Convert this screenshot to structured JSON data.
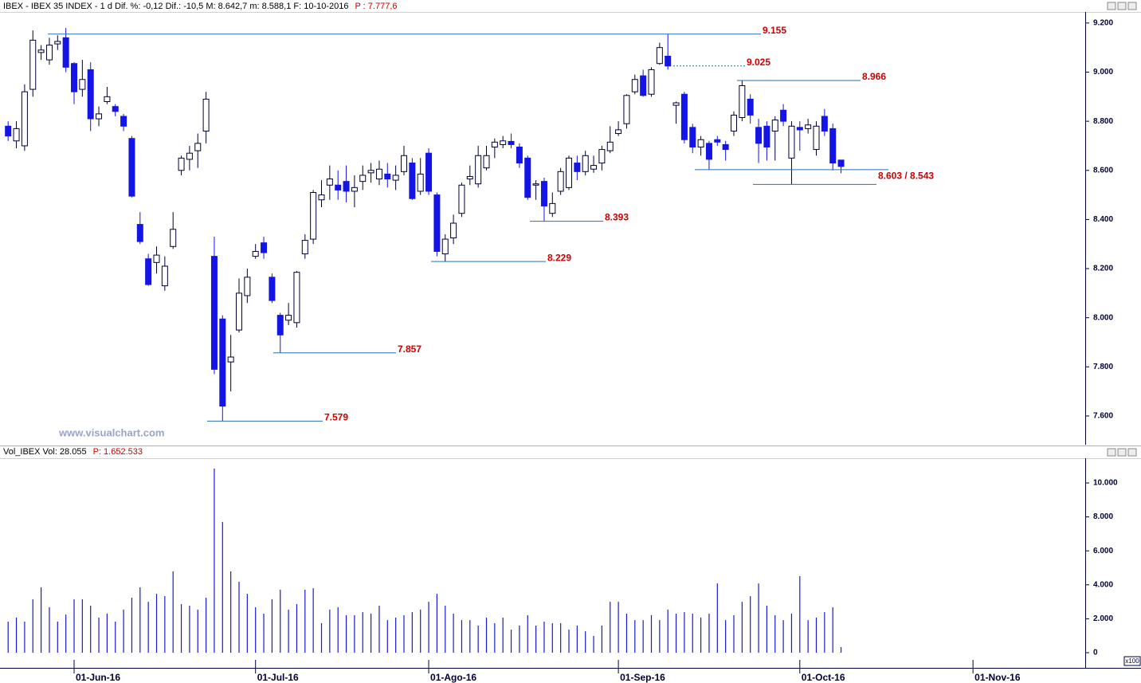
{
  "chart_data": [
    {
      "type": "candlestick",
      "title": "IBEX - IBEX 35 INDEX - 1 d  Dif. %: -0,12  Dif.: -10,5  M: 8.642,7  m: 8.588,1  F: 10-10-2016",
      "subtitle": "P : 7.777,6",
      "watermark": "www.visualchart.com",
      "up_color": "#ffffff",
      "down_color": "#1414e6",
      "outline_color": "#000033",
      "annotation_color": "#2a6fb0",
      "annotation_label_color": "#cc0000",
      "categories": [
        null,
        null,
        null,
        null,
        null,
        null,
        null,
        null,
        "01-Jun-16",
        null,
        null,
        null,
        null,
        null,
        null,
        null,
        null,
        null,
        null,
        null,
        null,
        null,
        null,
        null,
        null,
        null,
        null,
        null,
        null,
        null,
        "01-Jul-16",
        null,
        null,
        null,
        null,
        null,
        null,
        null,
        null,
        null,
        null,
        null,
        null,
        null,
        null,
        null,
        null,
        null,
        null,
        null,
        null,
        "01-Ago-16",
        null,
        null,
        null,
        null,
        null,
        null,
        null,
        null,
        null,
        null,
        null,
        null,
        null,
        null,
        null,
        null,
        null,
        null,
        null,
        null,
        null,
        null,
        "01-Sep-16",
        null,
        null,
        null,
        null,
        null,
        null,
        null,
        null,
        null,
        null,
        null,
        null,
        null,
        null,
        null,
        null,
        null,
        null,
        null,
        null,
        null,
        "01-Oct-16",
        null,
        null,
        null,
        null,
        null,
        null,
        null,
        null,
        null,
        null,
        null,
        null,
        null,
        null,
        null,
        null,
        null,
        null,
        null,
        null,
        "01-Nov-16"
      ],
      "open": [
        8780,
        8720,
        8700,
        8930,
        9080,
        9050,
        9115,
        9140,
        9035,
        8930,
        9010,
        8810,
        8880,
        8860,
        8820,
        8730,
        8380,
        8240,
        8225,
        8130,
        8290,
        8600,
        8645,
        8680,
        8760,
        8250,
        7995,
        7820,
        7950,
        8090,
        8250,
        8305,
        8165,
        8010,
        7990,
        7980,
        8260,
        8320,
        8480,
        8540,
        8540,
        8555,
        8515,
        8555,
        8590,
        8565,
        8585,
        8560,
        8595,
        8630,
        8515,
        8670,
        8500,
        8260,
        8325,
        8425,
        8565,
        8545,
        8610,
        8695,
        8705,
        8718,
        8695,
        8650,
        8540,
        8555,
        8425,
        8515,
        8530,
        8630,
        8595,
        8605,
        8630,
        8680,
        8750,
        8790,
        8920,
        8985,
        8910,
        9035,
        9065,
        8865,
        8910,
        8775,
        8695,
        8710,
        8725,
        8705,
        8760,
        8815,
        8890,
        8775,
        8780,
        8760,
        8845,
        8650,
        8775,
        8770,
        8685,
        8820,
        8770,
        8642,
        null,
        null,
        null,
        null,
        null,
        null,
        null,
        null,
        null,
        null,
        null,
        null,
        null,
        null,
        null,
        null
      ],
      "high": [
        8800,
        8800,
        8950,
        9170,
        9110,
        9140,
        9150,
        9180,
        9040,
        9050,
        9040,
        8860,
        8940,
        8870,
        8830,
        8740,
        8430,
        8260,
        8290,
        8250,
        8430,
        8660,
        8700,
        8750,
        8920,
        8330,
        8010,
        7930,
        8160,
        8200,
        8300,
        8330,
        8180,
        8020,
        8060,
        8190,
        8340,
        8520,
        8560,
        8620,
        8600,
        8620,
        8580,
        8620,
        8630,
        8640,
        8630,
        8620,
        8700,
        8650,
        8650,
        8690,
        8510,
        8340,
        8420,
        8550,
        8620,
        8700,
        8700,
        8730,
        8740,
        8750,
        8710,
        8660,
        8560,
        8570,
        8510,
        8610,
        8660,
        8660,
        8680,
        8660,
        8700,
        8780,
        8800,
        8910,
        8990,
        9010,
        9020,
        9120,
        9155,
        8880,
        8920,
        8790,
        8740,
        8720,
        8740,
        8720,
        8840,
        8966,
        8910,
        8810,
        8800,
        8820,
        8870,
        8800,
        8800,
        8810,
        8800,
        8850,
        8790,
        8643,
        null,
        null,
        null,
        null,
        null,
        null,
        null,
        null,
        null,
        null,
        null,
        null,
        null,
        null,
        null,
        null
      ],
      "low": [
        8720,
        8690,
        8680,
        8900,
        9050,
        9030,
        9090,
        9000,
        8870,
        8900,
        8760,
        8780,
        8870,
        8820,
        8760,
        8490,
        8300,
        8130,
        8180,
        8110,
        8280,
        8580,
        8600,
        8610,
        8710,
        7770,
        7579,
        7700,
        7940,
        8060,
        8240,
        8240,
        8060,
        7857,
        7970,
        7960,
        8240,
        8300,
        8450,
        8480,
        8480,
        8470,
        8450,
        8520,
        8550,
        8540,
        8530,
        8520,
        8580,
        8480,
        8500,
        8500,
        8250,
        8229,
        8300,
        8410,
        8540,
        8530,
        8600,
        8650,
        8690,
        8690,
        8610,
        8480,
        8480,
        8393,
        8410,
        8500,
        8520,
        8560,
        8580,
        8590,
        8600,
        8670,
        8740,
        8770,
        8910,
        8900,
        8900,
        9030,
        9010,
        8790,
        8710,
        8670,
        8660,
        8603,
        8700,
        8640,
        8740,
        8800,
        8790,
        8630,
        8640,
        8640,
        8780,
        8543,
        8680,
        8750,
        8660,
        8740,
        8600,
        8588,
        null,
        null,
        null,
        null,
        null,
        null,
        null,
        null,
        null,
        null,
        null,
        null,
        null,
        null,
        null,
        null
      ],
      "close": [
        8740,
        8770,
        8920,
        9130,
        9090,
        9110,
        9125,
        9020,
        8920,
        8970,
        8810,
        8830,
        8900,
        8840,
        8780,
        8495,
        8310,
        8135,
        8255,
        8210,
        8360,
        8650,
        8670,
        8710,
        8890,
        7790,
        7640,
        7840,
        8100,
        8165,
        8270,
        8265,
        8070,
        7930,
        8010,
        8185,
        8315,
        8510,
        8500,
        8565,
        8520,
        8515,
        8530,
        8580,
        8600,
        8605,
        8565,
        8580,
        8660,
        8485,
        8585,
        8515,
        8270,
        8320,
        8385,
        8540,
        8575,
        8660,
        8660,
        8715,
        8720,
        8705,
        8630,
        8490,
        8545,
        8455,
        8465,
        8595,
        8650,
        8595,
        8660,
        8620,
        8685,
        8715,
        8765,
        8905,
        8970,
        8905,
        9010,
        9100,
        9025,
        8875,
        8725,
        8695,
        8725,
        8645,
        8715,
        8685,
        8825,
        8945,
        8825,
        8710,
        8695,
        8805,
        8800,
        8780,
        8765,
        8785,
        8780,
        8760,
        8630,
        8616,
        null,
        null,
        null,
        null,
        null,
        null,
        null,
        null,
        null,
        null,
        null,
        null,
        null,
        null,
        null,
        null
      ],
      "ylim": [
        7483,
        9245
      ],
      "yticks": [
        {
          "value": 9200,
          "label": "9.200"
        },
        {
          "value": 9000,
          "label": "9.000"
        },
        {
          "value": 8800,
          "label": "8.800"
        },
        {
          "value": 8600,
          "label": "8.600"
        },
        {
          "value": 8400,
          "label": "8.400"
        },
        {
          "value": 8200,
          "label": "8.200"
        },
        {
          "value": 8000,
          "label": "8.000"
        },
        {
          "value": 7800,
          "label": "7.800"
        },
        {
          "value": 7600,
          "label": "7.600"
        }
      ],
      "annotations": [
        {
          "value": 9155,
          "label": "9.155"
        },
        {
          "value": 9025,
          "label": "9.025"
        },
        {
          "value": 8966,
          "label": "8.966"
        },
        {
          "values": [
            8603,
            8543
          ],
          "label": "8.603 / 8.543"
        },
        {
          "value": 8393,
          "label": "8.393"
        },
        {
          "value": 8229,
          "label": "8.229"
        },
        {
          "value": 7857,
          "label": "7.857"
        },
        {
          "value": 7579,
          "label": "7.579"
        }
      ]
    },
    {
      "type": "bar",
      "title": "Vol_IBEX Vol: 28.055",
      "subtitle": "P: 1.652.533",
      "unit": "x100",
      "color": "#1a1acc",
      "values": [
        1830,
        2070,
        1830,
        3150,
        3850,
        2680,
        1830,
        2250,
        3150,
        3150,
        2770,
        2070,
        2300,
        1830,
        2540,
        3240,
        3850,
        3000,
        3470,
        3330,
        4790,
        2860,
        2770,
        2540,
        3240,
        10850,
        7700,
        4790,
        4180,
        3470,
        2680,
        2300,
        3150,
        3710,
        2540,
        2860,
        3710,
        3800,
        1740,
        2540,
        2680,
        2210,
        2210,
        2390,
        2300,
        2770,
        1920,
        2070,
        2210,
        2390,
        2540,
        3000,
        3470,
        2770,
        2300,
        1920,
        1920,
        1600,
        2070,
        1740,
        2070,
        1360,
        1600,
        2210,
        1600,
        1830,
        1740,
        1740,
        1360,
        1600,
        1270,
        990,
        1600,
        3000,
        3000,
        2300,
        1920,
        1920,
        2210,
        1920,
        2540,
        2300,
        2390,
        2300,
        2070,
        2300,
        4080,
        1920,
        2210,
        3000,
        3330,
        4080,
        2770,
        2210,
        1920,
        2300,
        4510,
        1920,
        2070,
        2390,
        2680,
        330,
        null,
        null,
        null,
        null,
        null,
        null,
        null,
        null,
        null,
        null,
        null,
        null,
        null,
        null,
        null,
        null
      ],
      "ylim": [
        -892,
        11455
      ],
      "yticks": [
        {
          "value": 10000,
          "label": "10.000"
        },
        {
          "value": 8000,
          "label": "8.000"
        },
        {
          "value": 6000,
          "label": "6.000"
        },
        {
          "value": 4000,
          "label": "4.000"
        },
        {
          "value": 2000,
          "label": "2.000"
        },
        0
      ]
    }
  ]
}
